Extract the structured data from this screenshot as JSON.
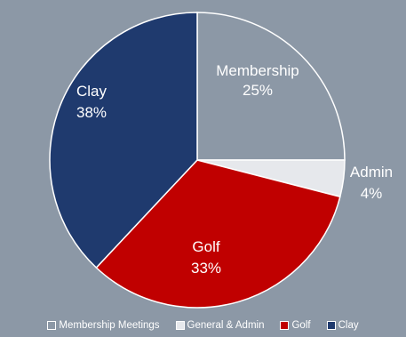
{
  "chart_data": {
    "type": "pie",
    "slices": [
      {
        "key": "membership",
        "label": "Membership",
        "pct_label": "25%",
        "value": 25,
        "color": "#8c98a6",
        "legend": "Membership Meetings"
      },
      {
        "key": "admin",
        "label": "Admin",
        "pct_label": "4%",
        "value": 4,
        "color": "#e6e8ec",
        "legend": "General & Admin"
      },
      {
        "key": "golf",
        "label": "Golf",
        "pct_label": "33%",
        "value": 33,
        "color": "#c00000",
        "legend": "Golf"
      },
      {
        "key": "clay",
        "label": "Clay",
        "pct_label": "38%",
        "value": 38,
        "color": "#1f3a6e",
        "legend": "Clay"
      }
    ],
    "legend_position": "bottom"
  }
}
